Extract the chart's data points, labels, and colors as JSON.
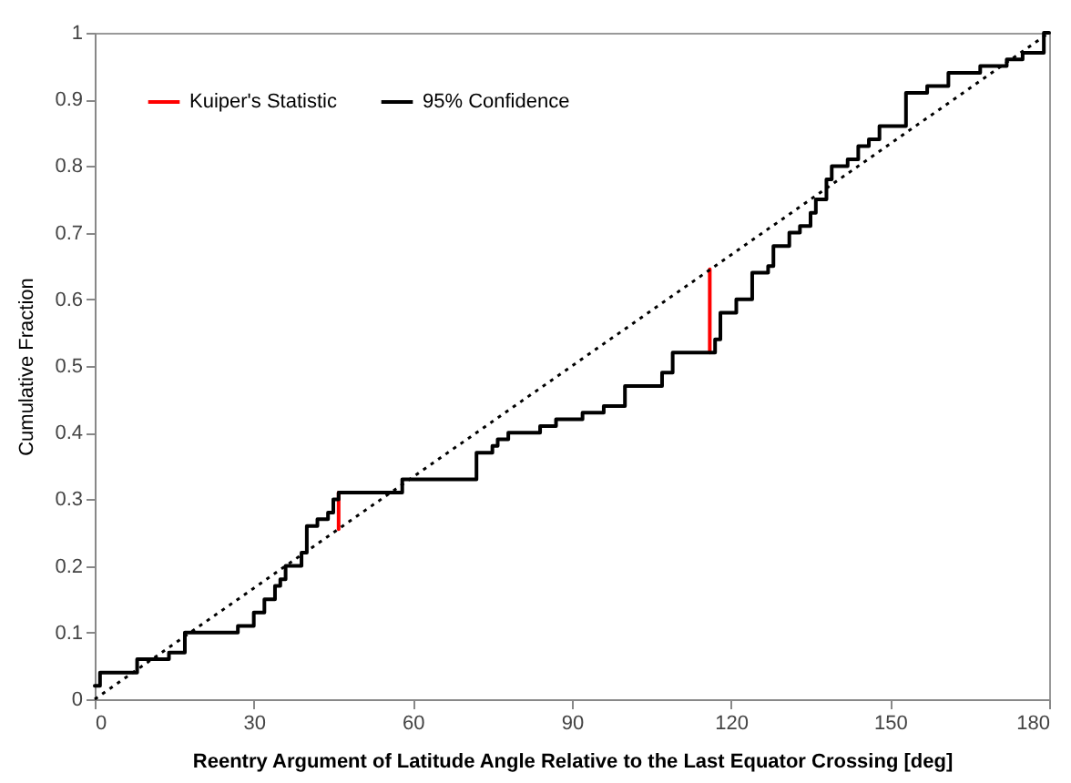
{
  "chart_data": {
    "type": "line",
    "xlabel": "Reentry Argument of Latitude Angle Relative to the Last Equator Crossing [deg]",
    "ylabel": "Cumulative Fraction",
    "xlim": [
      0,
      180
    ],
    "ylim": [
      0,
      1
    ],
    "xticks": [
      0,
      30,
      60,
      90,
      120,
      150,
      180
    ],
    "yticks": [
      0,
      0.1,
      0.2,
      0.3,
      0.4,
      0.5,
      0.6,
      0.7,
      0.8,
      0.9,
      1
    ],
    "grid": false,
    "legend": "top left",
    "series": [
      {
        "name": "Kuiper's Statistic",
        "color": "#ff0000",
        "line_style": "solid",
        "x": [
          46,
          46,
          null,
          116,
          116
        ],
        "values": [
          0.255,
          0.31,
          null,
          0.52,
          0.645
        ]
      },
      {
        "type": "step",
        "name": "95% Confidence",
        "color": "#000000",
        "line_style": "solid",
        "x": [
          0,
          1,
          8,
          14,
          17,
          27,
          30,
          32,
          34,
          35,
          36,
          39,
          40,
          42,
          44,
          45,
          46,
          58,
          72,
          75,
          76,
          78,
          84,
          87,
          92,
          96,
          100,
          107,
          109,
          117,
          118,
          121,
          124,
          127,
          128,
          131,
          133,
          135,
          136,
          138,
          139,
          142,
          144,
          146,
          148,
          153,
          157,
          161,
          167,
          172,
          175,
          179,
          180
        ],
        "values": [
          0.02,
          0.04,
          0.06,
          0.07,
          0.1,
          0.11,
          0.13,
          0.15,
          0.17,
          0.18,
          0.2,
          0.22,
          0.26,
          0.27,
          0.28,
          0.3,
          0.31,
          0.33,
          0.37,
          0.38,
          0.39,
          0.4,
          0.41,
          0.42,
          0.43,
          0.44,
          0.47,
          0.49,
          0.52,
          0.54,
          0.58,
          0.6,
          0.64,
          0.65,
          0.68,
          0.7,
          0.71,
          0.73,
          0.75,
          0.78,
          0.8,
          0.81,
          0.83,
          0.84,
          0.86,
          0.91,
          0.92,
          0.94,
          0.95,
          0.96,
          0.97,
          1,
          1
        ]
      },
      {
        "color": "#000000",
        "line_style": "dotted",
        "x": [
          0,
          180
        ],
        "values": [
          0,
          1
        ]
      }
    ]
  }
}
